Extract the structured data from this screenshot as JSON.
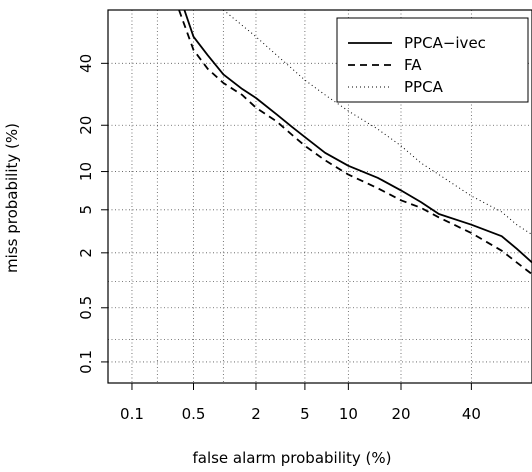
{
  "chart_data": {
    "type": "line",
    "title": "",
    "xlabel": "false alarm probability (%)",
    "ylabel": "miss probability (%)",
    "scale": "normal-deviate (probit), DET plot",
    "xlim": [
      0.05,
      60
    ],
    "ylim": [
      0.05,
      60
    ],
    "x_ticks": [
      0.1,
      0.5,
      2,
      5,
      10,
      20,
      40
    ],
    "x_tick_labels": [
      "0.1",
      "0.5",
      "2",
      "5",
      "10",
      "20",
      "40"
    ],
    "y_ticks": [
      0.1,
      0.5,
      2,
      5,
      10,
      20,
      40
    ],
    "y_tick_labels": [
      "0.1",
      "0.5",
      "2",
      "5",
      "10",
      "20",
      "40"
    ],
    "x_grid": [
      0.1,
      0.2,
      0.5,
      1,
      2,
      5,
      10,
      20,
      40
    ],
    "y_grid": [
      0.1,
      0.2,
      0.5,
      1,
      2,
      5,
      10,
      20,
      40
    ],
    "grid": true,
    "legend_position": "top-right",
    "series": [
      {
        "name": "PPCA−ivec",
        "style": "solid",
        "color": "#000000",
        "points": [
          [
            0.4,
            60
          ],
          [
            0.5,
            50
          ],
          [
            0.7,
            43
          ],
          [
            1,
            36
          ],
          [
            1.5,
            31
          ],
          [
            2,
            28
          ],
          [
            3,
            23
          ],
          [
            4,
            19.5
          ],
          [
            5,
            17
          ],
          [
            7,
            13.5
          ],
          [
            10,
            11
          ],
          [
            15,
            9
          ],
          [
            20,
            7.2
          ],
          [
            25,
            5.8
          ],
          [
            30,
            4.6
          ],
          [
            40,
            3.7
          ],
          [
            50,
            2.9
          ],
          [
            55,
            2.2
          ],
          [
            60,
            1.6
          ]
        ]
      },
      {
        "name": "FA",
        "style": "dashed",
        "color": "#000000",
        "points": [
          [
            0.35,
            60
          ],
          [
            0.5,
            45
          ],
          [
            0.7,
            38
          ],
          [
            1,
            33
          ],
          [
            1.5,
            29
          ],
          [
            2,
            25
          ],
          [
            3,
            21
          ],
          [
            4,
            17.5
          ],
          [
            5,
            15
          ],
          [
            7,
            12
          ],
          [
            10,
            9.5
          ],
          [
            15,
            7.5
          ],
          [
            20,
            6
          ],
          [
            25,
            5.2
          ],
          [
            30,
            4.3
          ],
          [
            40,
            3.1
          ],
          [
            50,
            2.1
          ],
          [
            55,
            1.6
          ],
          [
            60,
            1.2
          ]
        ]
      },
      {
        "name": "PPCA",
        "style": "dotted",
        "color": "#000000",
        "points": [
          [
            1,
            60
          ],
          [
            2,
            50
          ],
          [
            3,
            43
          ],
          [
            4,
            38
          ],
          [
            5,
            34
          ],
          [
            7,
            29
          ],
          [
            10,
            24
          ],
          [
            15,
            19
          ],
          [
            20,
            15
          ],
          [
            25,
            11.5
          ],
          [
            30,
            9.5
          ],
          [
            40,
            6.5
          ],
          [
            50,
            4.8
          ],
          [
            55,
            3.7
          ],
          [
            60,
            3
          ]
        ]
      }
    ]
  }
}
